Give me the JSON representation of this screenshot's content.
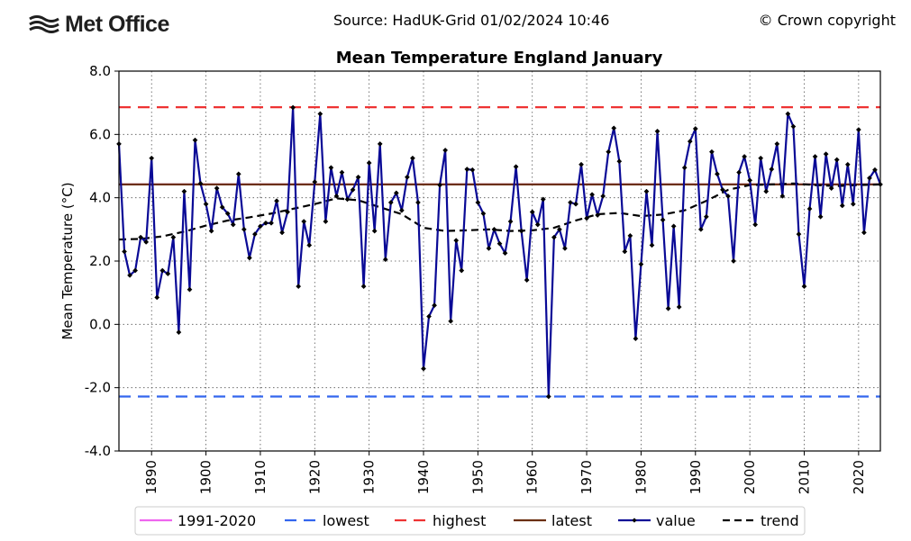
{
  "header": {
    "logo_text": "Met Office",
    "source": "Source: HadUK-Grid 01/02/2024 10:46",
    "copyright": "© Crown copyright"
  },
  "chart_data": {
    "type": "line",
    "title": "Mean Temperature England January",
    "ylabel": "Mean Temperature (°C)",
    "xlabel": "",
    "xlim": [
      1884,
      2024
    ],
    "ylim": [
      -4.0,
      8.0
    ],
    "yticks": [
      "8.0",
      "6.0",
      "4.0",
      "2.0",
      "0.0",
      "-2.0",
      "-4.0"
    ],
    "xticks": [
      "1890",
      "1900",
      "1910",
      "1920",
      "1930",
      "1940",
      "1950",
      "1960",
      "1970",
      "1980",
      "1990",
      "2000",
      "2010",
      "2020"
    ],
    "grid": true,
    "legend_position": "bottom",
    "legend": [
      "1991-2020",
      "lowest",
      "highest",
      "latest",
      "value",
      "trend"
    ],
    "colors": {
      "mean_1991_2020": "#ee66ee",
      "lowest": "#3366ee",
      "highest": "#ee3333",
      "latest": "#6b2f0f",
      "value": "#0a0a96",
      "trend": "#000000"
    },
    "reference_lines": {
      "mean_1991_2020": 4.42,
      "lowest": -2.28,
      "highest": 6.86,
      "latest": 4.42
    },
    "series": [
      {
        "name": "value",
        "x_start": 1884,
        "values": [
          5.7,
          2.3,
          1.55,
          1.7,
          2.75,
          2.6,
          5.25,
          0.85,
          1.7,
          1.6,
          2.75,
          -0.25,
          4.2,
          1.1,
          5.82,
          4.45,
          3.8,
          2.95,
          4.3,
          3.7,
          3.5,
          3.15,
          4.75,
          3.0,
          2.1,
          2.85,
          3.1,
          3.2,
          3.2,
          3.9,
          2.9,
          3.55,
          6.85,
          1.2,
          3.25,
          2.5,
          4.5,
          6.65,
          3.25,
          4.95,
          4.05,
          4.8,
          3.95,
          4.25,
          4.65,
          1.2,
          5.1,
          2.95,
          5.7,
          2.05,
          3.85,
          4.15,
          3.6,
          4.65,
          5.25,
          3.85,
          -1.4,
          0.25,
          0.6,
          4.4,
          5.5,
          0.1,
          2.65,
          1.7,
          4.9,
          4.88,
          3.85,
          3.5,
          2.4,
          3.0,
          2.55,
          2.25,
          3.25,
          4.98,
          2.95,
          1.4,
          3.55,
          3.15,
          3.95,
          -2.28,
          2.75,
          3.0,
          2.4,
          3.85,
          3.8,
          5.05,
          3.35,
          4.1,
          3.45,
          4.05,
          5.45,
          6.2,
          5.15,
          2.3,
          2.8,
          -0.45,
          1.9,
          4.2,
          2.5,
          6.1,
          3.3,
          0.5,
          3.1,
          0.55,
          4.95,
          5.78,
          6.18,
          3.0,
          3.4,
          5.45,
          4.75,
          4.25,
          4.05,
          2.0,
          4.8,
          5.3,
          4.55,
          3.15,
          5.25,
          4.2,
          4.9,
          5.7,
          4.05,
          6.65,
          6.25,
          2.85,
          1.2,
          3.65,
          5.3,
          3.4,
          5.38,
          4.3,
          5.2,
          3.75,
          5.05,
          3.8,
          6.15,
          2.9,
          4.62,
          4.88,
          4.42
        ]
      },
      {
        "name": "trend",
        "x": [
          1884,
          1888,
          1892,
          1896,
          1900,
          1904,
          1908,
          1912,
          1916,
          1920,
          1924,
          1928,
          1932,
          1936,
          1940,
          1944,
          1948,
          1952,
          1956,
          1960,
          1964,
          1968,
          1972,
          1976,
          1980,
          1984,
          1988,
          1992,
          1996,
          2000,
          2004,
          2008,
          2012,
          2016,
          2020,
          2024
        ],
        "values": [
          2.68,
          2.7,
          2.78,
          2.93,
          3.12,
          3.28,
          3.38,
          3.5,
          3.65,
          3.8,
          3.98,
          3.92,
          3.7,
          3.48,
          3.05,
          2.95,
          2.97,
          3.0,
          2.95,
          2.97,
          3.05,
          3.28,
          3.48,
          3.52,
          3.42,
          3.47,
          3.6,
          3.9,
          4.25,
          4.4,
          4.42,
          4.45,
          4.4,
          4.37,
          4.4,
          4.42
        ]
      }
    ]
  }
}
